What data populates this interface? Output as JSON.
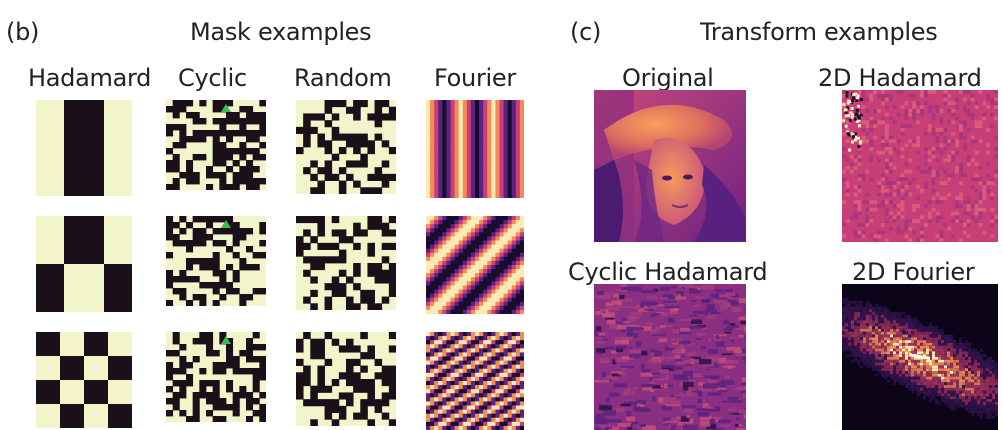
{
  "colors": {
    "cream": "#f2f5c9",
    "black": "#1b1019",
    "magma_dark": "#1a0c2e",
    "magma_purple": "#5a2382",
    "magma_magenta": "#c83f77",
    "magma_orange": "#f38b57",
    "magma_light": "#fbe9b6",
    "triangle_green": "#3dbd50"
  },
  "panel_b": {
    "label": "(b)",
    "title": "Mask examples",
    "columns": [
      {
        "key": "hadamard",
        "label": "Hadamard"
      },
      {
        "key": "cyclic",
        "label": "Cyclic"
      },
      {
        "key": "random",
        "label": "Random"
      },
      {
        "key": "fourier",
        "label": "Fourier"
      }
    ]
  },
  "panel_c": {
    "label": "(c)",
    "title": "Transform examples",
    "images": [
      {
        "key": "original",
        "label": "Original"
      },
      {
        "key": "hadamard2d",
        "label": "2D Hadamard"
      },
      {
        "key": "cyclic",
        "label": "Cyclic Hadamard"
      },
      {
        "key": "fourier2d",
        "label": "2D Fourier"
      }
    ]
  }
}
